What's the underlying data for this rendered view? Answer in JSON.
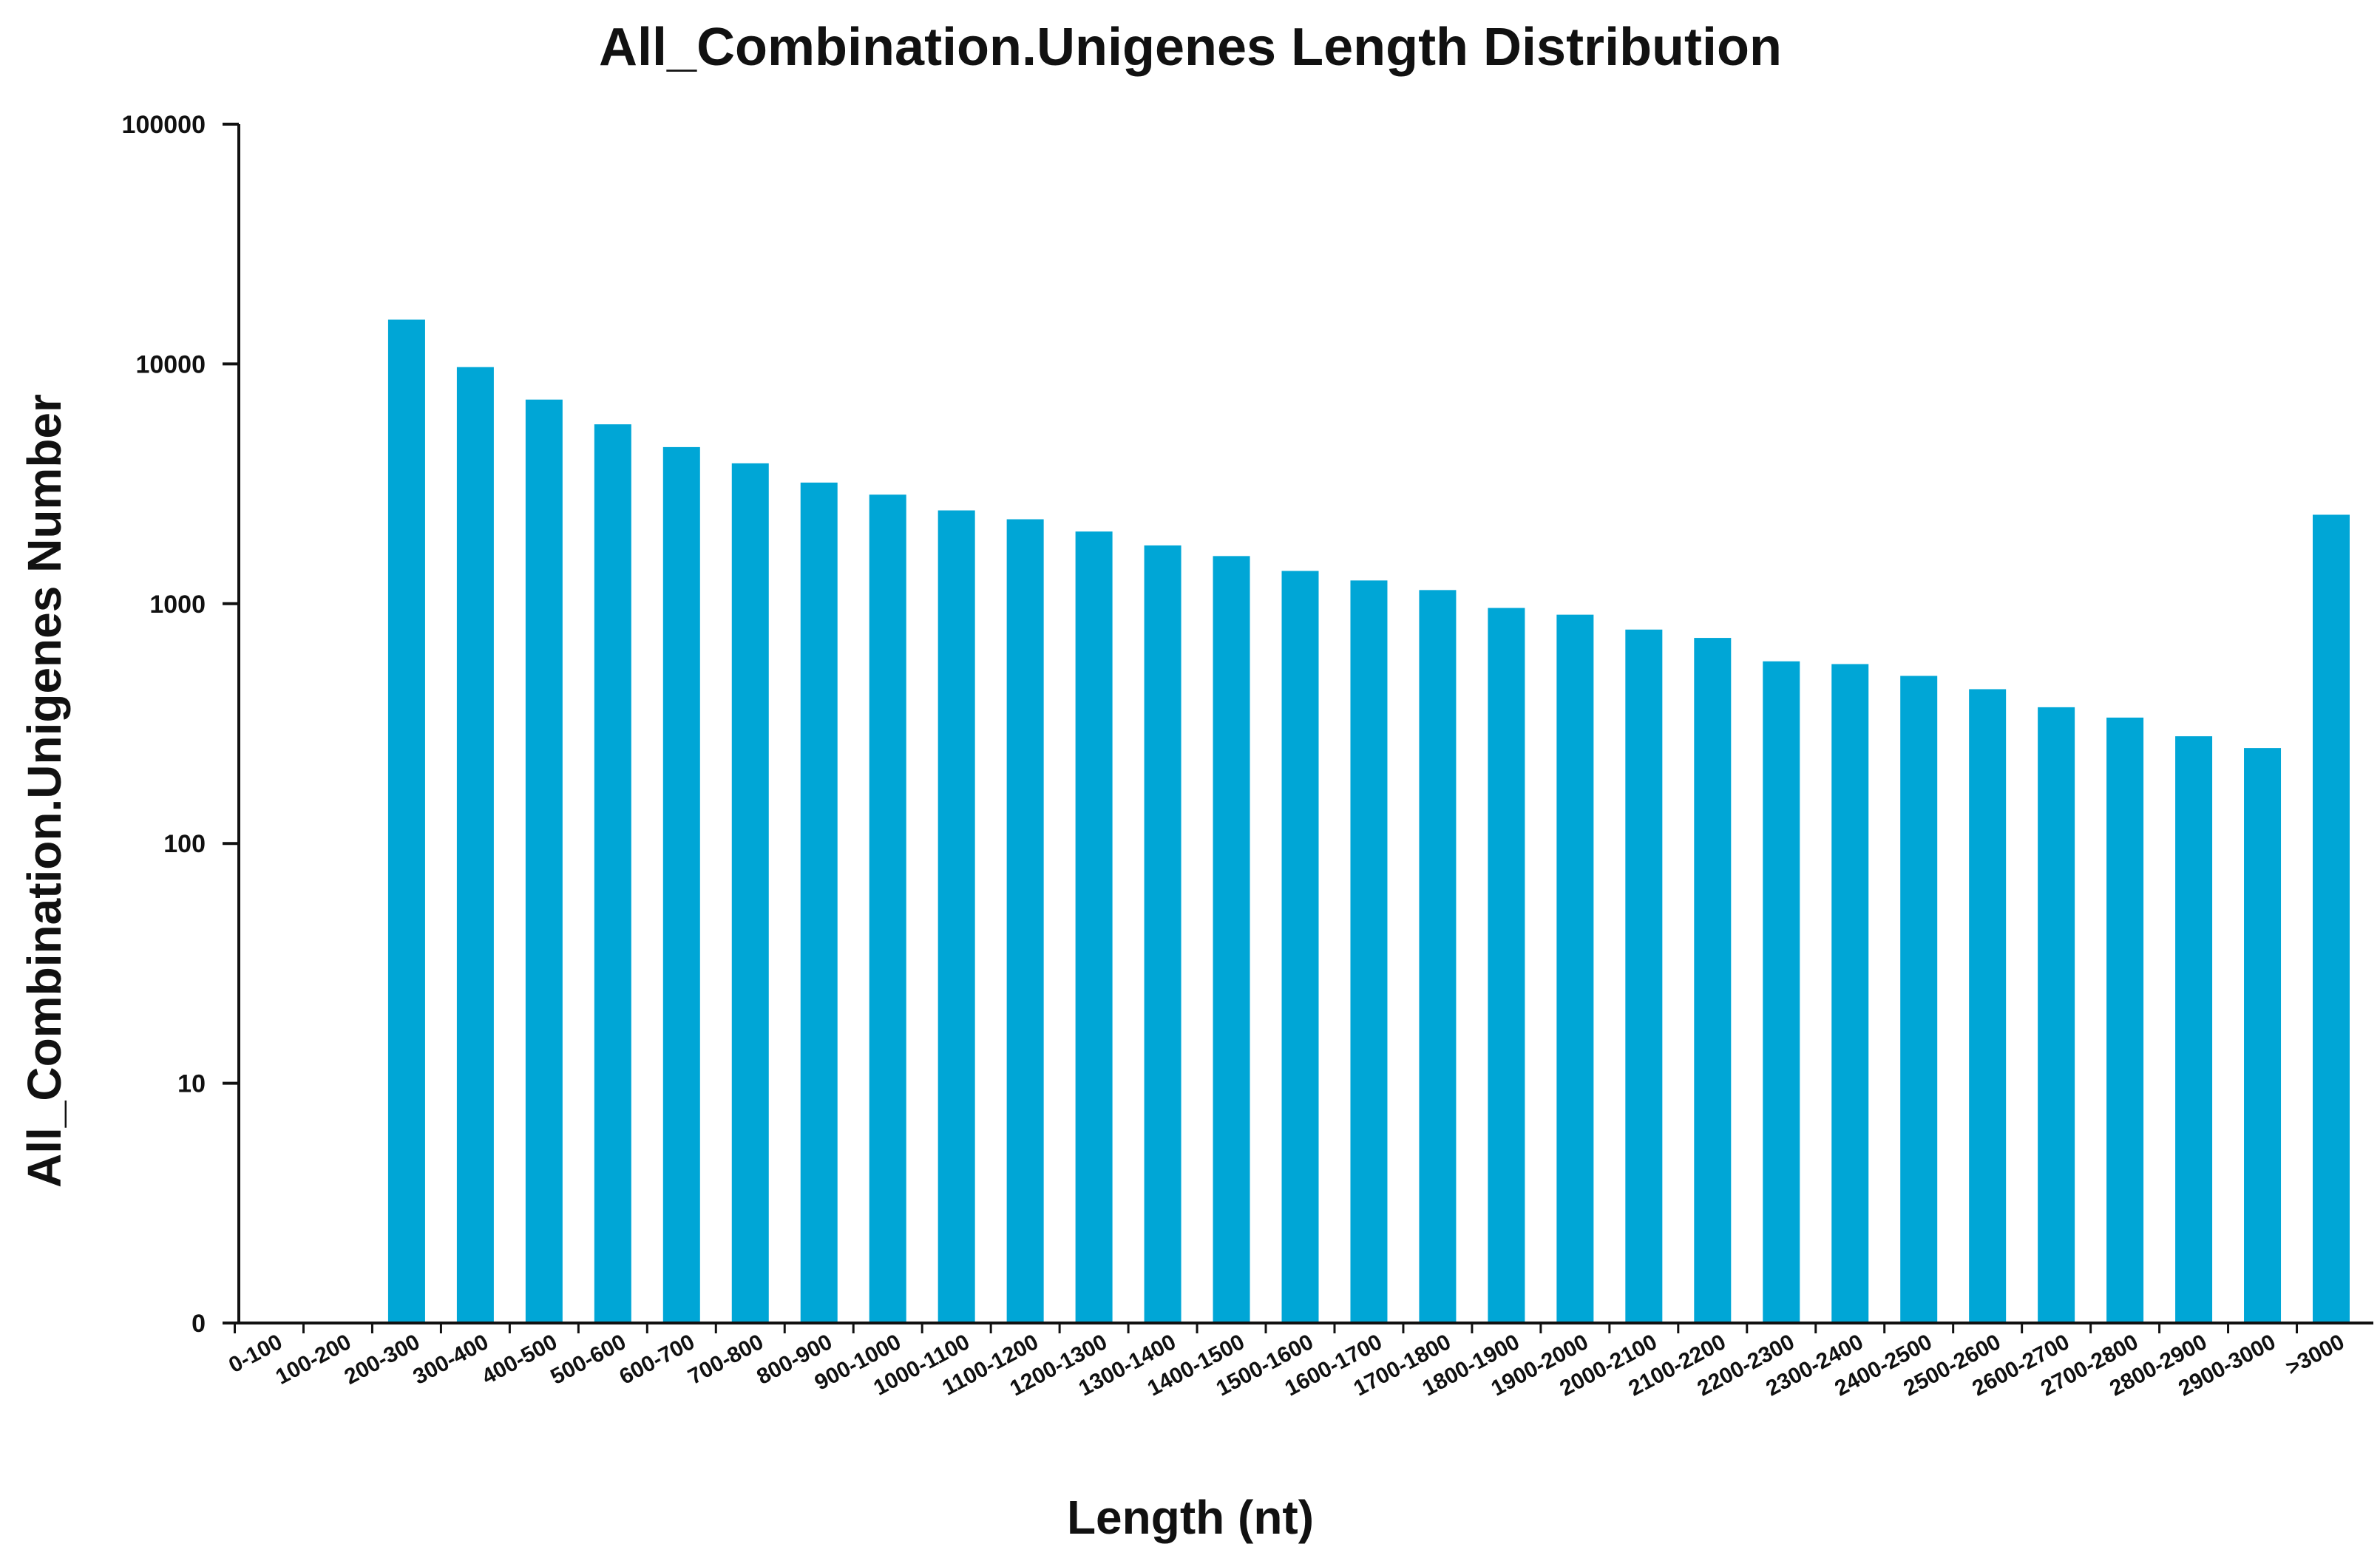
{
  "chart_data": {
    "type": "bar",
    "title": "All_Combination.Unigenes Length Distribution",
    "xlabel": "Length (nt)",
    "ylabel": "All_Combination.Unigenes Number",
    "yscale": "log",
    "ylim": [
      1,
      100000
    ],
    "yticks": [
      {
        "value": 1,
        "label": "0"
      },
      {
        "value": 10,
        "label": "10"
      },
      {
        "value": 100,
        "label": "100"
      },
      {
        "value": 1000,
        "label": "1000"
      },
      {
        "value": 10000,
        "label": "10000"
      },
      {
        "value": 100000,
        "label": "100000"
      }
    ],
    "categories": [
      "0-100",
      "100-200",
      "200-300",
      "300-400",
      "400-500",
      "500-600",
      "600-700",
      "700-800",
      "800-900",
      "900-1000",
      "1000-1100",
      "1100-1200",
      "1200-1300",
      "1300-1400",
      "1400-1500",
      "1500-1600",
      "1600-1700",
      "1700-1800",
      "1800-1900",
      "1900-2000",
      "2000-2100",
      "2100-2200",
      "2200-2300",
      "2300-2400",
      "2400-2500",
      "2500-2600",
      "2600-2700",
      "2700-2800",
      "2800-2900",
      "2900-3000",
      ">3000"
    ],
    "values": [
      0,
      0,
      15300,
      9700,
      7100,
      5600,
      4500,
      3850,
      3200,
      2850,
      2450,
      2250,
      2000,
      1750,
      1580,
      1370,
      1250,
      1140,
      960,
      900,
      780,
      720,
      575,
      560,
      500,
      440,
      370,
      335,
      280,
      250,
      2350
    ],
    "bar_color": "#00A6D6",
    "grid": false,
    "legend": "none"
  }
}
